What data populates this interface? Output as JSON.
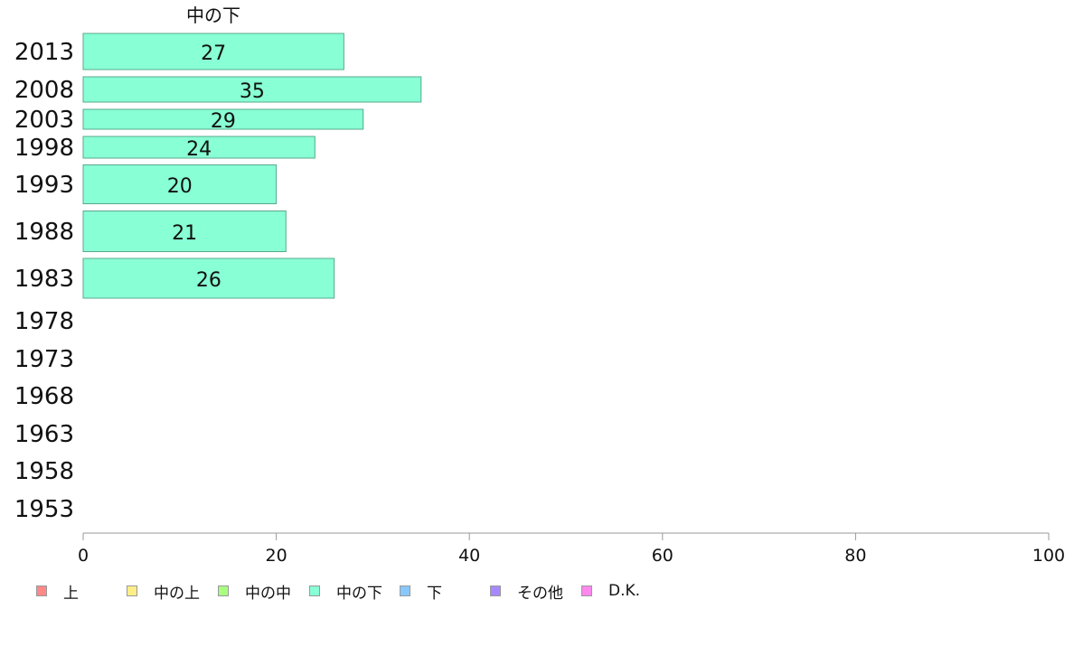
{
  "chart_data": {
    "type": "bar",
    "orientation": "horizontal",
    "title": "中の下",
    "categories": [
      "2013",
      "2008",
      "2003",
      "1998",
      "1993",
      "1988",
      "1983",
      "1978",
      "1973",
      "1968",
      "1963",
      "1958",
      "1953"
    ],
    "series": [
      {
        "name": "中の下",
        "values": [
          27,
          35,
          29,
          24,
          20,
          21,
          26,
          null,
          null,
          null,
          null,
          null,
          null
        ]
      }
    ],
    "xlim": [
      0,
      100
    ],
    "xticks": [
      0,
      20,
      40,
      60,
      80,
      100
    ],
    "grid": false,
    "legend_position": "bottom-left",
    "bar_color": "#88ffd5",
    "bar_border_color": "#5aa88c",
    "axis_color": "#999999"
  },
  "legend": [
    {
      "label": "上",
      "color": "#ff8888"
    },
    {
      "label": "中の上",
      "color": "#ffee88"
    },
    {
      "label": "中の中",
      "color": "#a8ff80"
    },
    {
      "label": "中の下",
      "color": "#88ffd5"
    },
    {
      "label": "下",
      "color": "#88c8ff"
    },
    {
      "label": "その他",
      "color": "#a888ff"
    },
    {
      "label": "D.K.",
      "color": "#ff88ee"
    }
  ]
}
